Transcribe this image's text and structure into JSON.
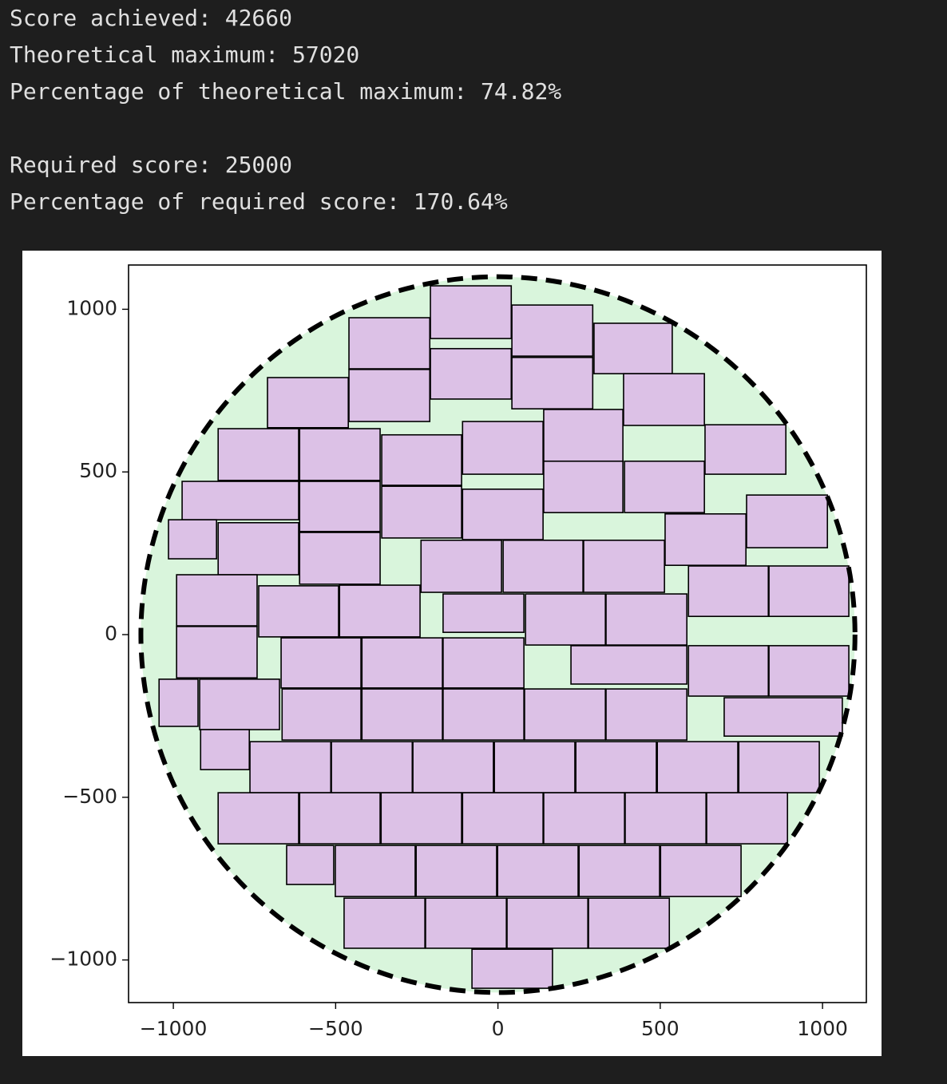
{
  "output_lines": [
    "Score achieved: 42660",
    "Theoretical maximum: 57020",
    "Percentage of theoretical maximum: 74.82%",
    "Required score: 25000",
    "Percentage of required score: 170.64%"
  ],
  "chart_data": {
    "type": "patches",
    "xlim": [
      -1138,
      1135
    ],
    "ylim": [
      -1131,
      1136
    ],
    "xticks": [
      {
        "value": -1000,
        "label": "−1000"
      },
      {
        "value": -500,
        "label": "−500"
      },
      0,
      500,
      1000
    ],
    "yticks": [
      {
        "value": -1000,
        "label": "−1000"
      },
      {
        "value": -500,
        "label": "−500"
      },
      0,
      500,
      1000
    ],
    "circle": {
      "center": [
        0,
        0
      ],
      "radius": 1100,
      "color": "#d9f5dc"
    },
    "rect_color": "#dcc1e6",
    "rectangles": [
      [
        -208,
        910,
        41,
        1072
      ],
      [
        -459,
        817,
        -210,
        974
      ],
      [
        43,
        856,
        292,
        1013
      ],
      [
        296,
        802,
        537,
        957
      ],
      [
        -459,
        655,
        -210,
        815
      ],
      [
        -208,
        724,
        41,
        879
      ],
      [
        43,
        694,
        292,
        852
      ],
      [
        387,
        643,
        636,
        802
      ],
      [
        -710,
        636,
        -461,
        790
      ],
      [
        -862,
        474,
        -614,
        633
      ],
      [
        -611,
        474,
        -363,
        633
      ],
      [
        -358,
        459,
        -112,
        614
      ],
      [
        -109,
        493,
        139,
        655
      ],
      [
        141,
        533,
        385,
        692
      ],
      [
        638,
        493,
        887,
        645
      ],
      [
        -973,
        353,
        -614,
        471
      ],
      [
        -611,
        317,
        -363,
        471
      ],
      [
        -358,
        297,
        -112,
        456
      ],
      [
        -109,
        292,
        139,
        447
      ],
      [
        141,
        375,
        385,
        533
      ],
      [
        390,
        375,
        636,
        533
      ],
      [
        766,
        267,
        1015,
        429
      ],
      [
        -1015,
        233,
        -867,
        353
      ],
      [
        -862,
        184,
        -614,
        344
      ],
      [
        -611,
        155,
        -363,
        314
      ],
      [
        -237,
        130,
        11,
        290
      ],
      [
        16,
        130,
        262,
        290
      ],
      [
        264,
        130,
        513,
        290
      ],
      [
        515,
        213,
        764,
        371
      ],
      [
        -990,
        27,
        -742,
        184
      ],
      [
        -737,
        -7,
        -491,
        150
      ],
      [
        -488,
        -7,
        -240,
        152
      ],
      [
        -169,
        7,
        80,
        125
      ],
      [
        85,
        -32,
        331,
        125
      ],
      [
        333,
        -32,
        582,
        125
      ],
      [
        587,
        56,
        833,
        211
      ],
      [
        835,
        56,
        1081,
        211
      ],
      [
        -990,
        -133,
        -742,
        25
      ],
      [
        -668,
        -164,
        -422,
        -10
      ],
      [
        -419,
        -164,
        -171,
        -10
      ],
      [
        -169,
        -164,
        80,
        -10
      ],
      [
        225,
        -152,
        582,
        -34
      ],
      [
        587,
        -189,
        833,
        -34
      ],
      [
        835,
        -189,
        1081,
        -34
      ],
      [
        -1044,
        -282,
        -924,
        -137
      ],
      [
        -919,
        -292,
        -673,
        -137
      ],
      [
        -665,
        -324,
        -422,
        -167
      ],
      [
        -419,
        -324,
        -171,
        -167
      ],
      [
        -169,
        -324,
        80,
        -167
      ],
      [
        82,
        -324,
        331,
        -167
      ],
      [
        333,
        -324,
        582,
        -167
      ],
      [
        697,
        -312,
        1061,
        -194
      ],
      [
        -916,
        -415,
        -766,
        -292
      ],
      [
        -764,
        -486,
        -515,
        -329
      ],
      [
        -513,
        -486,
        -264,
        -329
      ],
      [
        -262,
        -486,
        -14,
        -329
      ],
      [
        -11,
        -486,
        237,
        -329
      ],
      [
        240,
        -486,
        488,
        -329
      ],
      [
        491,
        -486,
        739,
        -329
      ],
      [
        742,
        -486,
        990,
        -329
      ],
      [
        -862,
        -643,
        -614,
        -486
      ],
      [
        -611,
        -643,
        -363,
        -486
      ],
      [
        -360,
        -643,
        -112,
        -486
      ],
      [
        -109,
        -643,
        139,
        -486
      ],
      [
        141,
        -643,
        390,
        -486
      ],
      [
        392,
        -643,
        641,
        -486
      ],
      [
        643,
        -643,
        892,
        -486
      ],
      [
        -651,
        -768,
        -506,
        -648
      ],
      [
        -501,
        -805,
        -255,
        -648
      ],
      [
        -252,
        -805,
        -4,
        -648
      ],
      [
        -1,
        -805,
        247,
        -648
      ],
      [
        250,
        -805,
        498,
        -648
      ],
      [
        501,
        -805,
        749,
        -648
      ],
      [
        -474,
        -964,
        -225,
        -810
      ],
      [
        -223,
        -964,
        26,
        -810
      ],
      [
        28,
        -964,
        277,
        -810
      ],
      [
        279,
        -964,
        528,
        -810
      ],
      [
        -80,
        -1087,
        168,
        -967
      ]
    ]
  }
}
